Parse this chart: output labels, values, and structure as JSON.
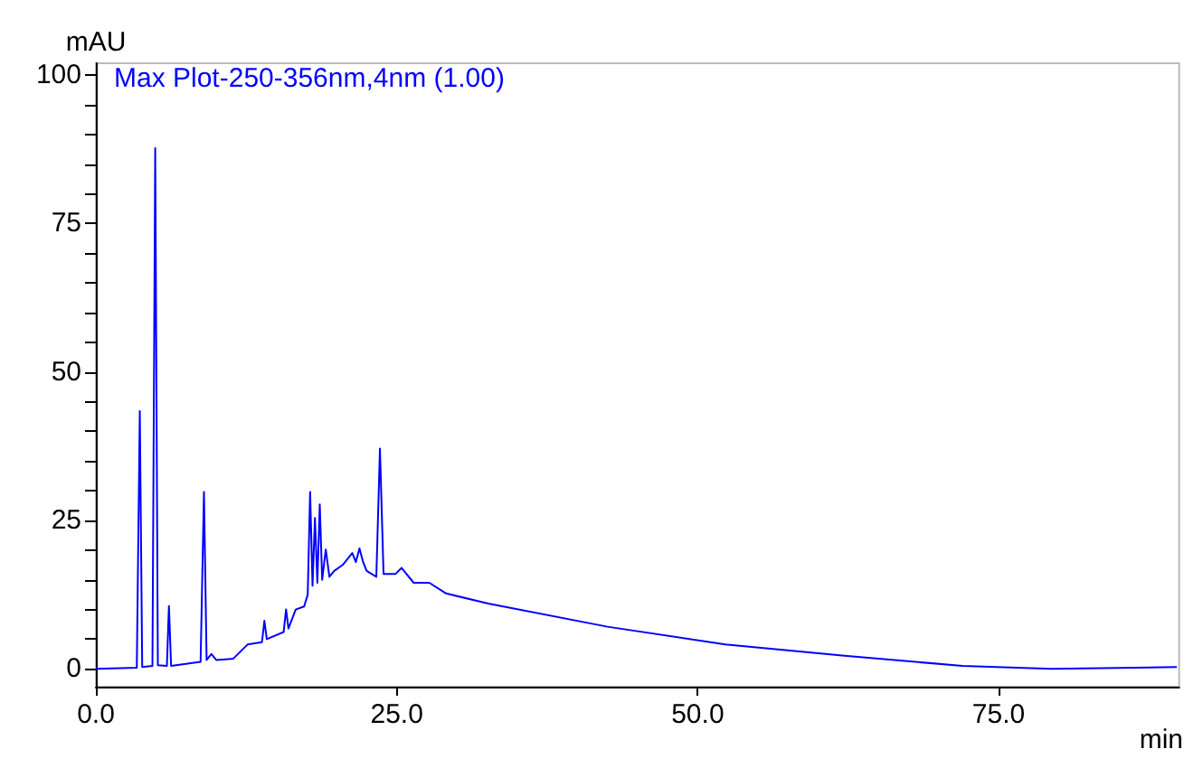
{
  "chart_data": {
    "type": "line",
    "xlabel": "min",
    "ylabel": "mAU",
    "xlim": [
      0,
      90
    ],
    "ylim": [
      -3,
      102
    ],
    "xticks": [
      {
        "value": 0,
        "label": "0.0"
      },
      {
        "value": 25,
        "label": "25.0"
      },
      {
        "value": 50,
        "label": "50.0"
      },
      {
        "value": 75,
        "label": "75.0"
      }
    ],
    "yticks": [
      0,
      {
        "value": 5,
        "label": null
      },
      {
        "value": 10,
        "label": null
      },
      {
        "value": 15,
        "label": null
      },
      {
        "value": 20,
        "label": null
      },
      25,
      {
        "value": 30,
        "label": null
      },
      {
        "value": 35,
        "label": null
      },
      {
        "value": 40,
        "label": null
      },
      {
        "value": 45,
        "label": null
      },
      50,
      {
        "value": 55,
        "label": null
      },
      {
        "value": 60,
        "label": null
      },
      {
        "value": 65,
        "label": null
      },
      {
        "value": 70,
        "label": null
      },
      75,
      {
        "value": 80,
        "label": null
      },
      {
        "value": 85,
        "label": null
      },
      {
        "value": 90,
        "label": null
      },
      {
        "value": 95,
        "label": null
      },
      100
    ],
    "grid": false,
    "legend": "top left",
    "marker": "none",
    "line_style": "solid",
    "series": [
      {
        "name": "Max Plot-250-356nm,4nm (1.00)",
        "color": "#0000ff",
        "x": [
          0,
          3.4,
          3.65,
          3.85,
          4.7,
          4.93,
          5.15,
          5.9,
          6.07,
          6.25,
          8.7,
          8.98,
          9.2,
          9.6,
          10,
          11.4,
          12.6,
          13.8,
          14.0,
          14.2,
          15.6,
          15.8,
          16.0,
          16.6,
          17.3,
          17.6,
          17.8,
          18.0,
          18.2,
          18.4,
          18.6,
          18.8,
          19.1,
          19.4,
          19.8,
          20.5,
          21.3,
          21.6,
          21.9,
          22.2,
          22.5,
          23.3,
          23.6,
          23.9,
          24.9,
          25.4,
          26.4,
          27.7,
          29.1,
          32.6,
          42.5,
          52.3,
          62.2,
          72,
          79.4,
          89.8
        ],
        "values": [
          0,
          0.2,
          43.4,
          0.3,
          0.5,
          87.7,
          0.6,
          0.5,
          10.6,
          0.5,
          1.2,
          29.8,
          1.5,
          2.5,
          1.5,
          1.7,
          4.1,
          4.5,
          8.1,
          5,
          6.2,
          10,
          6.8,
          10,
          10.5,
          12.5,
          29.8,
          14,
          25.4,
          14.5,
          27.7,
          15,
          20.1,
          15.5,
          16.5,
          17.5,
          19.5,
          18,
          20.3,
          18,
          16.5,
          15.5,
          37.1,
          16,
          16,
          17,
          14.5,
          14.5,
          12.7,
          11,
          7.1,
          4.1,
          2.2,
          0.5,
          0,
          0.3
        ]
      }
    ]
  }
}
